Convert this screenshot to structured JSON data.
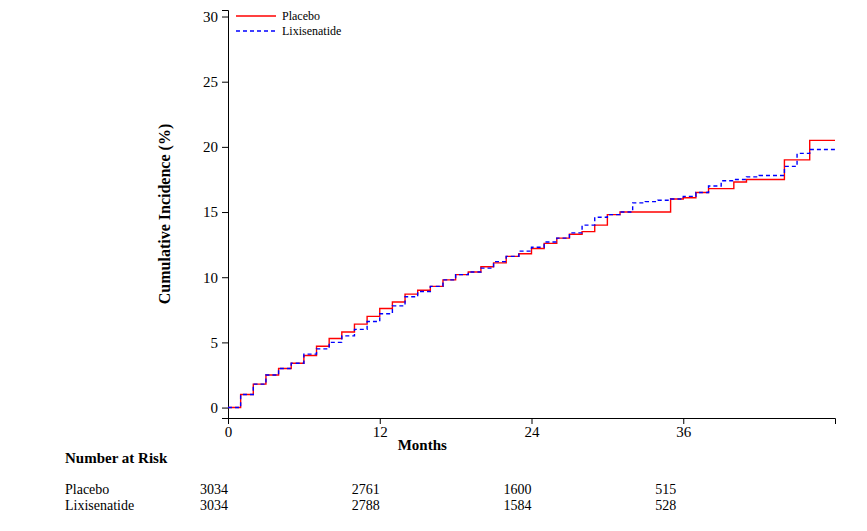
{
  "chart_data": {
    "type": "line",
    "xlabel": "Months",
    "ylabel": "Cumulative Incidence (%)",
    "legend": "upper left",
    "xlim": [
      0,
      48
    ],
    "ylim": [
      -0.8,
      30.5
    ],
    "xticks": [
      0,
      12,
      24,
      36
    ],
    "yticks": [
      0,
      5,
      10,
      15,
      20,
      25,
      30
    ],
    "x": [
      0,
      1,
      2,
      3,
      4,
      5,
      6,
      7,
      8,
      9,
      10,
      11,
      12,
      13,
      14,
      15,
      16,
      17,
      18,
      19,
      20,
      21,
      22,
      23,
      24,
      25,
      26,
      27,
      28,
      29,
      30,
      31,
      32,
      33,
      34,
      35,
      36,
      37,
      38,
      39,
      40,
      41,
      42,
      43,
      44,
      45,
      46,
      47,
      48
    ],
    "series": [
      {
        "name": "Placebo",
        "color": "#ff0000",
        "line_style": "solid",
        "values": [
          0,
          1.0,
          1.8,
          2.5,
          3.0,
          3.4,
          4.0,
          4.7,
          5.3,
          5.8,
          6.4,
          7.0,
          7.6,
          8.1,
          8.7,
          9.0,
          9.3,
          9.8,
          10.2,
          10.4,
          10.8,
          11.1,
          11.6,
          11.8,
          12.2,
          12.6,
          13.0,
          13.3,
          13.5,
          14.0,
          14.8,
          15.0,
          15.0,
          15.0,
          15.0,
          16.0,
          16.1,
          16.5,
          16.8,
          16.8,
          17.3,
          17.5,
          17.5,
          17.5,
          19.0,
          19.0,
          20.5,
          20.5,
          20.5
        ]
      },
      {
        "name": "Lixisenatide",
        "color": "#0000ff",
        "line_style": "dashed",
        "values": [
          0,
          1.0,
          1.8,
          2.5,
          3.0,
          3.4,
          4.1,
          4.5,
          5.0,
          5.5,
          6.0,
          6.6,
          7.2,
          7.8,
          8.5,
          8.9,
          9.3,
          9.8,
          10.2,
          10.4,
          10.7,
          11.2,
          11.6,
          12.0,
          12.3,
          12.7,
          13.0,
          13.4,
          14.0,
          14.6,
          14.8,
          15.0,
          15.7,
          15.8,
          15.9,
          16.0,
          16.2,
          16.5,
          17.0,
          17.4,
          17.5,
          17.7,
          17.8,
          17.8,
          18.5,
          19.5,
          19.8,
          19.8,
          19.8
        ]
      }
    ],
    "number_at_risk": {
      "title": "Number at Risk",
      "x": [
        0,
        12,
        24,
        36
      ],
      "rows": [
        {
          "name": "Placebo",
          "values": [
            3034,
            2761,
            1600,
            515
          ]
        },
        {
          "name": "Lixisenatide",
          "values": [
            3034,
            2788,
            1584,
            528
          ]
        }
      ]
    }
  }
}
